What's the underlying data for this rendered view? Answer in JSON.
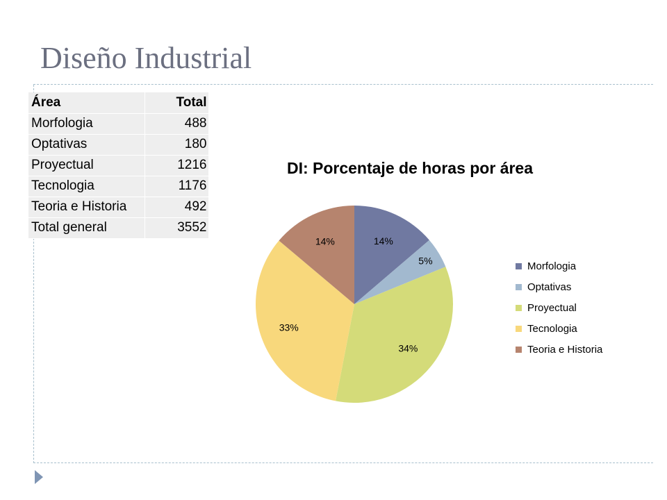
{
  "slide": {
    "title": "Diseño Industrial"
  },
  "table": {
    "headers": [
      "Área",
      "Total"
    ],
    "rows": [
      {
        "area": "Morfologia",
        "total": "488"
      },
      {
        "area": "Optativas",
        "total": "180"
      },
      {
        "area": "Proyectual",
        "total": "1216"
      },
      {
        "area": "Tecnologia",
        "total": "1176"
      },
      {
        "area": "Teoria e Historia",
        "total": "492"
      },
      {
        "area": "Total general",
        "total": "3552"
      }
    ]
  },
  "chart_data": {
    "type": "pie",
    "title": "DI: Porcentaje de horas por área",
    "categories": [
      "Morfologia",
      "Optativas",
      "Proyectual",
      "Tecnologia",
      "Teoria e Historia"
    ],
    "values": [
      488,
      180,
      1216,
      1176,
      492
    ],
    "data_labels": [
      "14%",
      "5%",
      "34%",
      "33%",
      "14%"
    ],
    "colors": [
      "#7079a1",
      "#a2b9cf",
      "#d4db79",
      "#f8d87c",
      "#b6846e"
    ],
    "legend_position": "right",
    "start_angle_deg": 0,
    "direction": "clockwise"
  }
}
